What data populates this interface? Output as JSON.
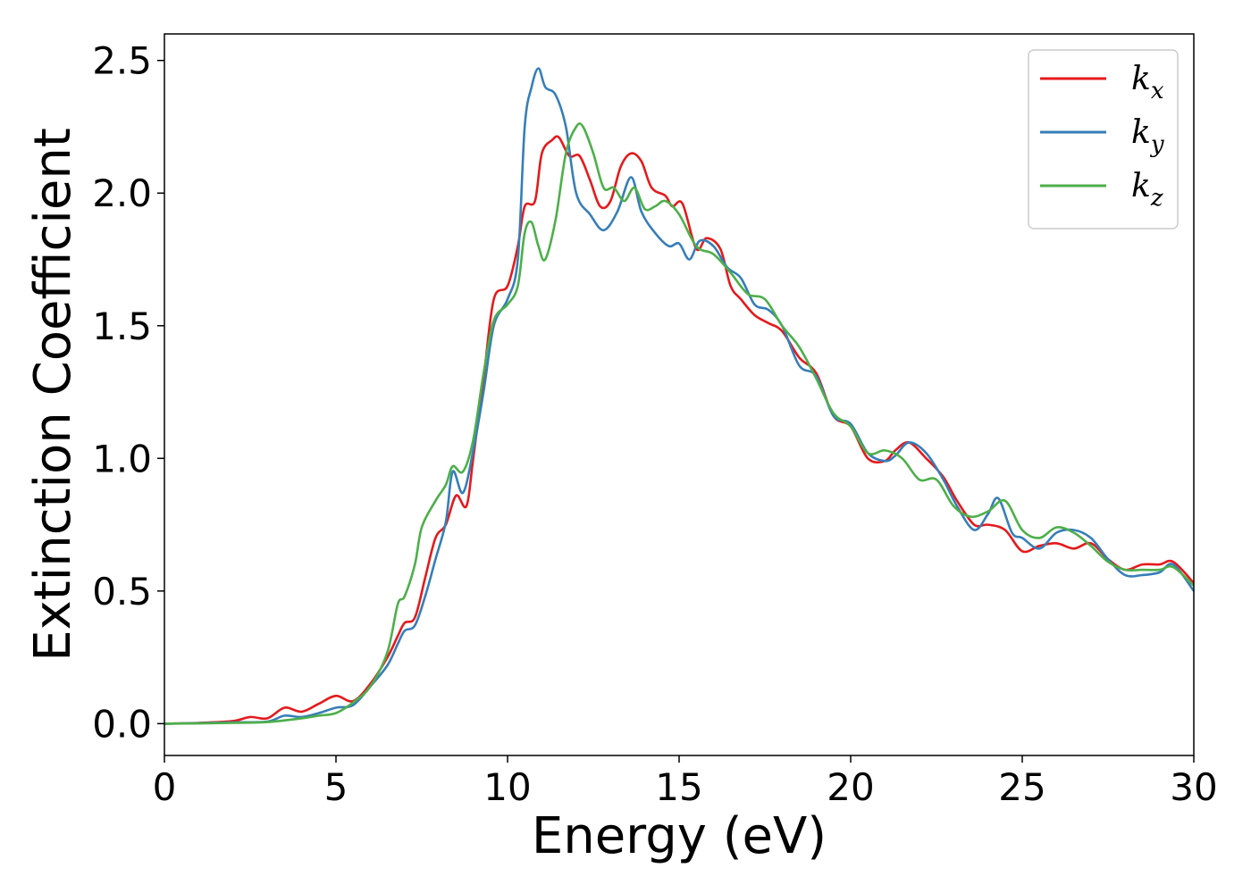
{
  "chart_data": {
    "type": "line",
    "xlabel": "Energy (eV)",
    "ylabel": "Extinction Coefficient",
    "xlim": [
      0,
      30
    ],
    "ylim": [
      -0.12,
      2.6
    ],
    "xticks": [
      "0",
      "5",
      "10",
      "15",
      "20",
      "25",
      "30"
    ],
    "yticks": [
      "0.0",
      "0.5",
      "1.0",
      "1.5",
      "2.0",
      "2.5"
    ],
    "grid": false,
    "legend_position": "top-right",
    "series": [
      {
        "name": "k",
        "subscript": "x",
        "color": "#e41a1c",
        "points": [
          [
            0,
            0.0
          ],
          [
            1,
            0.003
          ],
          [
            2,
            0.01
          ],
          [
            2.5,
            0.025
          ],
          [
            3,
            0.02
          ],
          [
            3.5,
            0.06
          ],
          [
            4,
            0.045
          ],
          [
            4.5,
            0.075
          ],
          [
            5,
            0.105
          ],
          [
            5.5,
            0.085
          ],
          [
            6,
            0.15
          ],
          [
            6.5,
            0.25
          ],
          [
            6.8,
            0.33
          ],
          [
            7,
            0.38
          ],
          [
            7.3,
            0.4
          ],
          [
            7.6,
            0.55
          ],
          [
            7.9,
            0.7
          ],
          [
            8.2,
            0.75
          ],
          [
            8.5,
            0.86
          ],
          [
            8.8,
            0.82
          ],
          [
            9.0,
            1.0
          ],
          [
            9.3,
            1.3
          ],
          [
            9.6,
            1.6
          ],
          [
            10.0,
            1.65
          ],
          [
            10.3,
            1.8
          ],
          [
            10.5,
            1.95
          ],
          [
            10.8,
            1.97
          ],
          [
            11.0,
            2.15
          ],
          [
            11.3,
            2.2
          ],
          [
            11.5,
            2.21
          ],
          [
            11.8,
            2.14
          ],
          [
            12.1,
            2.14
          ],
          [
            12.4,
            2.05
          ],
          [
            12.7,
            1.95
          ],
          [
            13.0,
            1.97
          ],
          [
            13.3,
            2.1
          ],
          [
            13.6,
            2.15
          ],
          [
            13.9,
            2.12
          ],
          [
            14.2,
            2.02
          ],
          [
            14.6,
            1.99
          ],
          [
            14.8,
            1.95
          ],
          [
            15.1,
            1.96
          ],
          [
            15.5,
            1.79
          ],
          [
            15.8,
            1.83
          ],
          [
            16.2,
            1.79
          ],
          [
            16.5,
            1.65
          ],
          [
            16.8,
            1.6
          ],
          [
            17.2,
            1.54
          ],
          [
            17.6,
            1.51
          ],
          [
            18.0,
            1.48
          ],
          [
            18.5,
            1.38
          ],
          [
            19.0,
            1.32
          ],
          [
            19.5,
            1.16
          ],
          [
            20.0,
            1.12
          ],
          [
            20.5,
            1.0
          ],
          [
            21.0,
            0.99
          ],
          [
            21.3,
            1.03
          ],
          [
            21.7,
            1.06
          ],
          [
            22.2,
            1.0
          ],
          [
            22.7,
            0.93
          ],
          [
            23.1,
            0.84
          ],
          [
            23.6,
            0.75
          ],
          [
            24.0,
            0.75
          ],
          [
            24.5,
            0.73
          ],
          [
            25.0,
            0.65
          ],
          [
            25.5,
            0.67
          ],
          [
            26.0,
            0.68
          ],
          [
            26.5,
            0.66
          ],
          [
            27.0,
            0.68
          ],
          [
            27.5,
            0.62
          ],
          [
            28.0,
            0.58
          ],
          [
            28.5,
            0.6
          ],
          [
            29.0,
            0.6
          ],
          [
            29.4,
            0.61
          ],
          [
            30.0,
            0.53
          ]
        ]
      },
      {
        "name": "k",
        "subscript": "y",
        "color": "#377eb8",
        "points": [
          [
            0,
            0.0
          ],
          [
            1,
            0.002
          ],
          [
            2,
            0.005
          ],
          [
            3,
            0.008
          ],
          [
            3.5,
            0.03
          ],
          [
            4,
            0.025
          ],
          [
            4.5,
            0.04
          ],
          [
            5,
            0.06
          ],
          [
            5.5,
            0.07
          ],
          [
            6,
            0.14
          ],
          [
            6.5,
            0.22
          ],
          [
            6.8,
            0.3
          ],
          [
            7,
            0.35
          ],
          [
            7.3,
            0.37
          ],
          [
            7.6,
            0.48
          ],
          [
            7.9,
            0.62
          ],
          [
            8.2,
            0.76
          ],
          [
            8.4,
            0.95
          ],
          [
            8.7,
            0.87
          ],
          [
            9.0,
            1.03
          ],
          [
            9.3,
            1.25
          ],
          [
            9.6,
            1.5
          ],
          [
            10.0,
            1.6
          ],
          [
            10.3,
            1.75
          ],
          [
            10.5,
            2.25
          ],
          [
            10.7,
            2.4
          ],
          [
            10.9,
            2.47
          ],
          [
            11.1,
            2.4
          ],
          [
            11.4,
            2.37
          ],
          [
            11.7,
            2.25
          ],
          [
            12.0,
            2.0
          ],
          [
            12.4,
            1.92
          ],
          [
            12.8,
            1.86
          ],
          [
            13.2,
            1.93
          ],
          [
            13.6,
            2.06
          ],
          [
            13.9,
            1.93
          ],
          [
            14.3,
            1.85
          ],
          [
            14.7,
            1.8
          ],
          [
            15.0,
            1.81
          ],
          [
            15.3,
            1.75
          ],
          [
            15.6,
            1.82
          ],
          [
            16.0,
            1.8
          ],
          [
            16.4,
            1.72
          ],
          [
            16.8,
            1.68
          ],
          [
            17.2,
            1.58
          ],
          [
            17.6,
            1.56
          ],
          [
            18.0,
            1.5
          ],
          [
            18.5,
            1.35
          ],
          [
            19.0,
            1.31
          ],
          [
            19.5,
            1.16
          ],
          [
            20.0,
            1.13
          ],
          [
            20.5,
            1.02
          ],
          [
            21.0,
            0.99
          ],
          [
            21.3,
            1.01
          ],
          [
            21.7,
            1.06
          ],
          [
            22.2,
            1.02
          ],
          [
            22.7,
            0.92
          ],
          [
            23.1,
            0.82
          ],
          [
            23.6,
            0.73
          ],
          [
            24.0,
            0.79
          ],
          [
            24.3,
            0.85
          ],
          [
            24.7,
            0.72
          ],
          [
            25.0,
            0.7
          ],
          [
            25.5,
            0.66
          ],
          [
            26.0,
            0.72
          ],
          [
            26.5,
            0.73
          ],
          [
            27.0,
            0.7
          ],
          [
            27.5,
            0.62
          ],
          [
            28.0,
            0.56
          ],
          [
            28.5,
            0.56
          ],
          [
            29.0,
            0.57
          ],
          [
            29.4,
            0.6
          ],
          [
            30.0,
            0.5
          ]
        ]
      },
      {
        "name": "k",
        "subscript": "z",
        "color": "#4daf4a",
        "points": [
          [
            0,
            0.0
          ],
          [
            1,
            0.001
          ],
          [
            2,
            0.003
          ],
          [
            3,
            0.006
          ],
          [
            4,
            0.02
          ],
          [
            4.5,
            0.03
          ],
          [
            5,
            0.04
          ],
          [
            5.5,
            0.08
          ],
          [
            6,
            0.14
          ],
          [
            6.5,
            0.27
          ],
          [
            6.8,
            0.45
          ],
          [
            7,
            0.48
          ],
          [
            7.3,
            0.6
          ],
          [
            7.5,
            0.74
          ],
          [
            7.9,
            0.84
          ],
          [
            8.2,
            0.9
          ],
          [
            8.4,
            0.97
          ],
          [
            8.7,
            0.95
          ],
          [
            9.0,
            1.07
          ],
          [
            9.3,
            1.32
          ],
          [
            9.6,
            1.52
          ],
          [
            10.0,
            1.58
          ],
          [
            10.3,
            1.65
          ],
          [
            10.5,
            1.85
          ],
          [
            10.7,
            1.89
          ],
          [
            10.9,
            1.8
          ],
          [
            11.1,
            1.75
          ],
          [
            11.4,
            1.9
          ],
          [
            11.7,
            2.15
          ],
          [
            12.0,
            2.25
          ],
          [
            12.2,
            2.25
          ],
          [
            12.5,
            2.15
          ],
          [
            12.8,
            2.02
          ],
          [
            13.1,
            2.02
          ],
          [
            13.4,
            1.97
          ],
          [
            13.7,
            2.02
          ],
          [
            14.0,
            1.94
          ],
          [
            14.3,
            1.95
          ],
          [
            14.6,
            1.97
          ],
          [
            15.0,
            1.92
          ],
          [
            15.5,
            1.8
          ],
          [
            16.0,
            1.77
          ],
          [
            16.5,
            1.7
          ],
          [
            17.0,
            1.62
          ],
          [
            17.5,
            1.6
          ],
          [
            18.0,
            1.5
          ],
          [
            18.5,
            1.42
          ],
          [
            19.0,
            1.3
          ],
          [
            19.5,
            1.17
          ],
          [
            20.0,
            1.12
          ],
          [
            20.5,
            1.02
          ],
          [
            21.0,
            1.03
          ],
          [
            21.5,
            1.0
          ],
          [
            22.0,
            0.92
          ],
          [
            22.5,
            0.92
          ],
          [
            23.0,
            0.82
          ],
          [
            23.5,
            0.78
          ],
          [
            24.0,
            0.8
          ],
          [
            24.5,
            0.84
          ],
          [
            25.0,
            0.73
          ],
          [
            25.5,
            0.7
          ],
          [
            26.0,
            0.74
          ],
          [
            26.5,
            0.72
          ],
          [
            27.0,
            0.67
          ],
          [
            27.5,
            0.61
          ],
          [
            28.0,
            0.58
          ],
          [
            28.5,
            0.58
          ],
          [
            29.0,
            0.58
          ],
          [
            29.4,
            0.59
          ],
          [
            30.0,
            0.52
          ]
        ]
      }
    ]
  }
}
